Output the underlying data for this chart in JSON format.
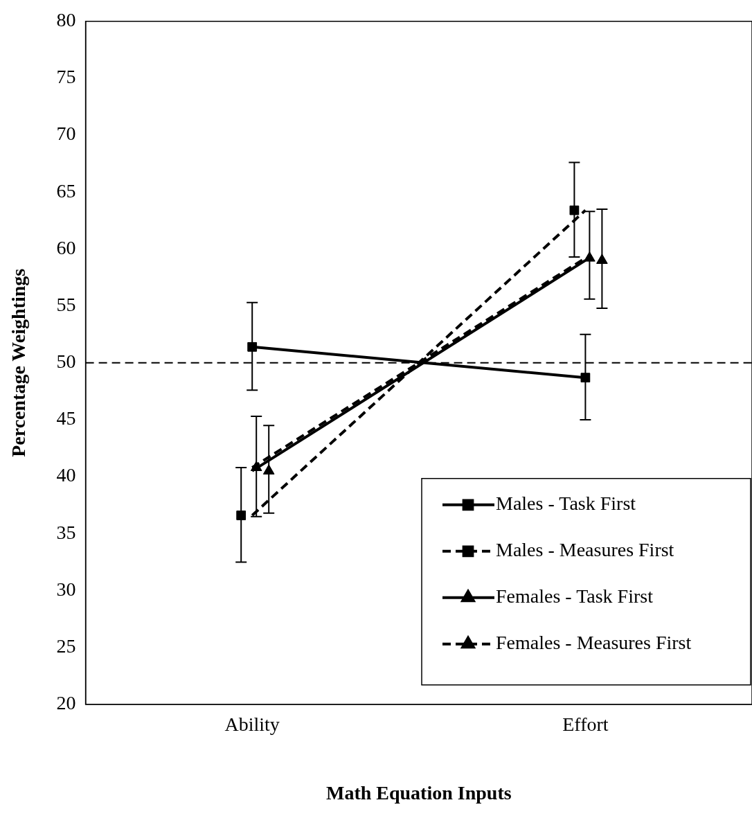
{
  "chart_data": {
    "type": "line",
    "xlabel": "Math Equation Inputs",
    "ylabel": "Percentage Weightings",
    "categories": [
      "Ability",
      "Effort"
    ],
    "series": [
      {
        "name": "Males - Task First",
        "color": "#000000",
        "values": [
          51.4,
          48.7
        ],
        "errors": [
          [
            47.6,
            55.3
          ],
          [
            45.0,
            52.5
          ]
        ],
        "marker": "square",
        "line_style": "solid"
      },
      {
        "name": "Males - Measures First",
        "color": "#000000",
        "values": [
          36.6,
          63.4
        ],
        "errors": [
          [
            32.5,
            40.8
          ],
          [
            59.3,
            67.6
          ]
        ],
        "marker": "square",
        "line_style": "dashed"
      },
      {
        "name": "Females - Task First",
        "color": "#000000",
        "values": [
          40.5,
          59.0
        ],
        "errors": [
          [
            36.8,
            44.5
          ],
          [
            54.8,
            63.5
          ]
        ],
        "marker": "triangle",
        "line_style": "solid"
      },
      {
        "name": "Females - Measures First",
        "color": "#000000",
        "values": [
          40.8,
          59.2
        ],
        "errors": [
          [
            36.5,
            45.3
          ],
          [
            55.6,
            63.3
          ]
        ],
        "marker": "triangle",
        "line_style": "dashed"
      }
    ],
    "ylim": [
      20,
      80
    ],
    "yticks": [
      20,
      25,
      30,
      35,
      40,
      45,
      50,
      55,
      60,
      65,
      70,
      75,
      80
    ],
    "grid": false,
    "legend": "bottom right",
    "ref_lines": [
      {
        "axis": "y",
        "value": 50,
        "line_style": "dashed",
        "color": "#000000"
      }
    ]
  }
}
